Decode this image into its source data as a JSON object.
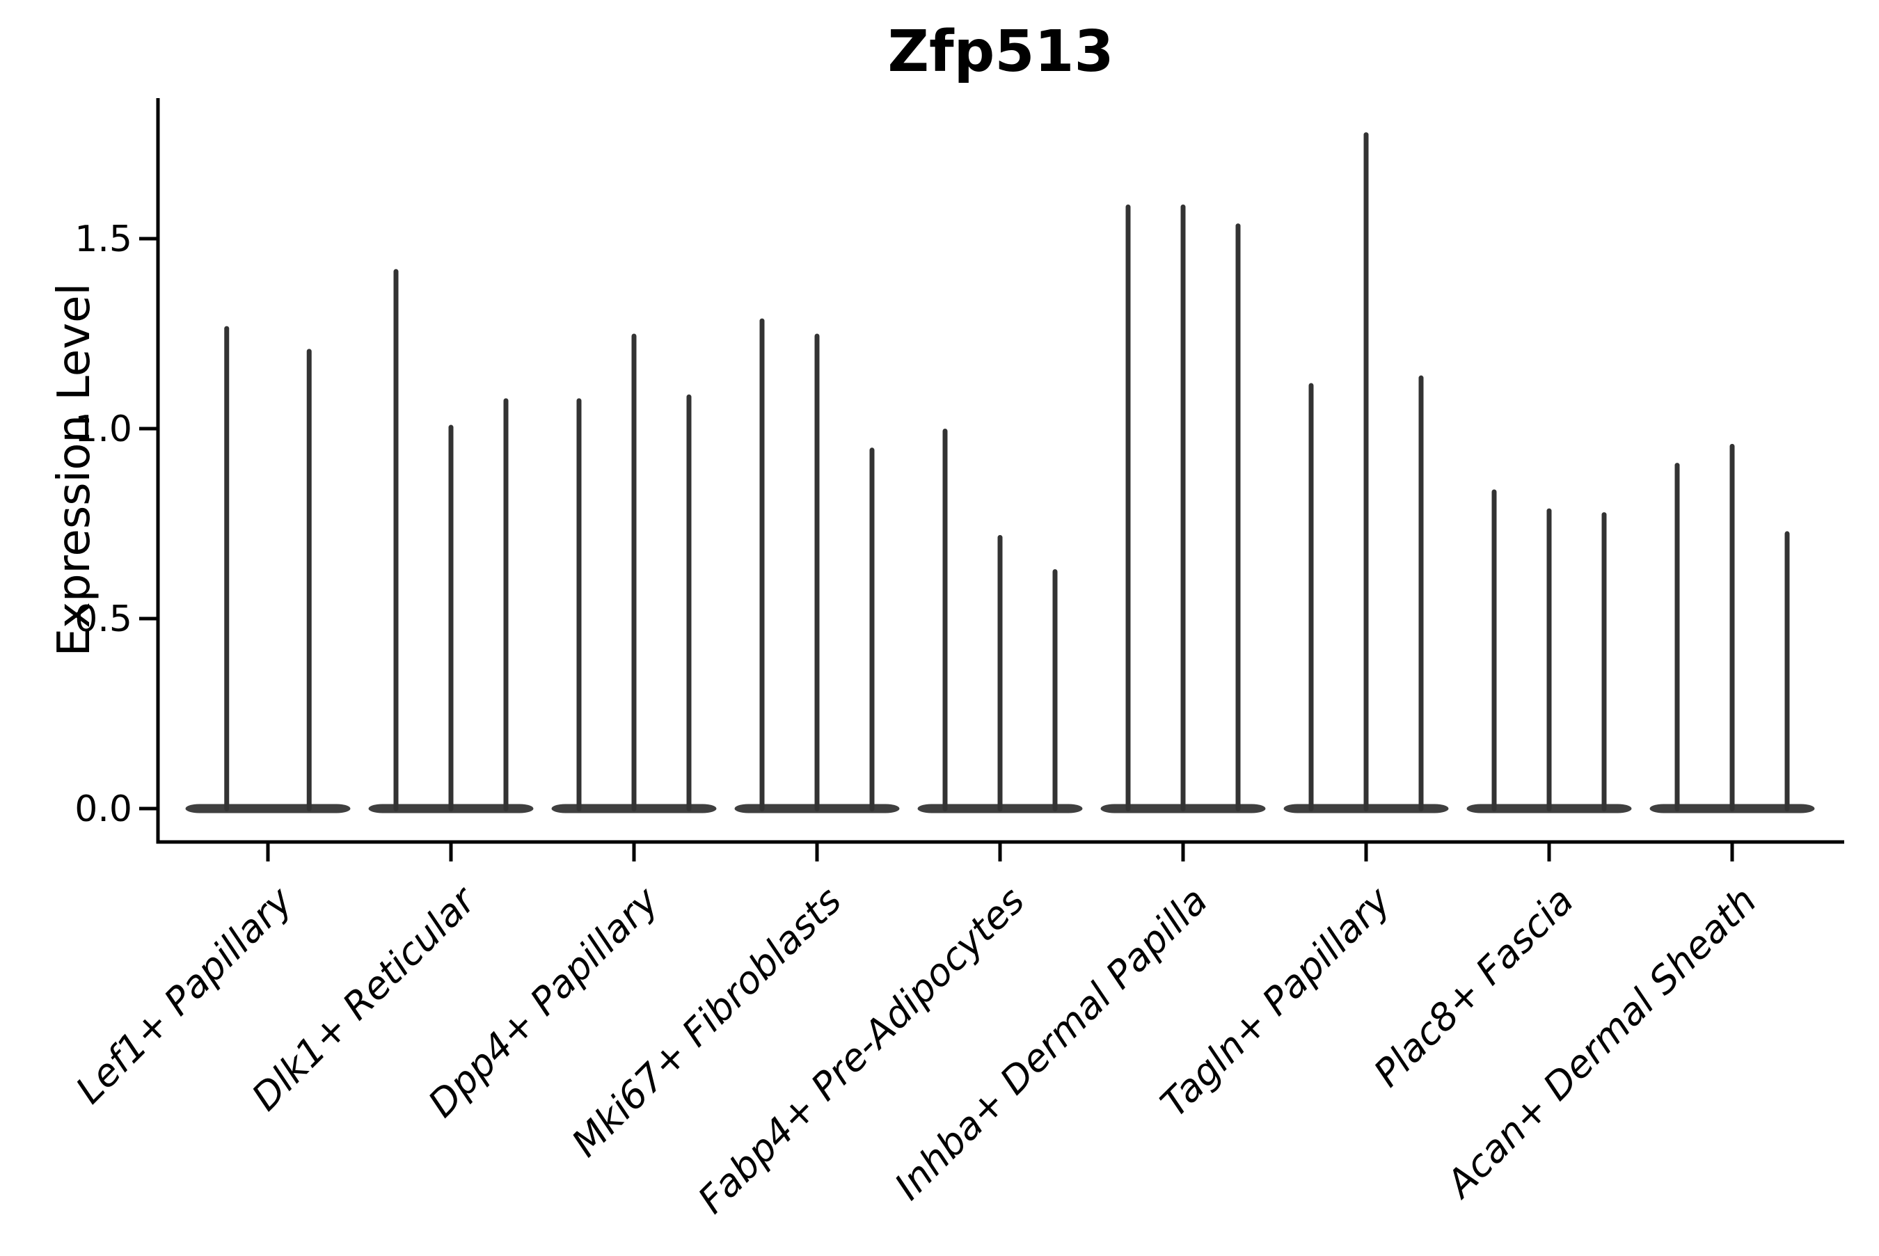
{
  "title": "Zfp513",
  "ylabel": "Expression Level",
  "chart_data": {
    "type": "violin",
    "title": "Zfp513",
    "xlabel": "",
    "ylabel": "Expression Level",
    "legend_position": "none",
    "grid": false,
    "baseline_value": 0.0,
    "yticks": [
      0.0,
      0.5,
      1.0,
      1.5
    ],
    "ylim": [
      -0.09,
      1.87
    ],
    "violin_color": "#3a3a3a",
    "shape_note": "each violin is a wide flat lens of density at 0 with a single thin spike rising to its max expression value",
    "categories": [
      "Lef1+ Papillary",
      "Dlk1+ Reticular",
      "Dpp4+ Papillary",
      "Mki67+ Fibroblasts",
      "Fabp4+ Pre-Adipocytes",
      "Inhba+ Dermal Papilla",
      "Tagln+ Papillary",
      "Plac8+ Fascia",
      "Acan+ Dermal Sheath"
    ],
    "groups": [
      {
        "category": "Lef1+ Papillary",
        "violin_max_values": [
          1.27,
          1.21
        ]
      },
      {
        "category": "Dlk1+ Reticular",
        "violin_max_values": [
          1.42,
          1.01,
          1.08
        ]
      },
      {
        "category": "Dpp4+ Papillary",
        "violin_max_values": [
          1.08,
          1.25,
          1.09
        ]
      },
      {
        "category": "Mki67+ Fibroblasts",
        "violin_max_values": [
          1.29,
          1.25,
          0.95
        ]
      },
      {
        "category": "Fabp4+ Pre-Adipocytes",
        "violin_max_values": [
          1.0,
          0.72,
          0.63
        ]
      },
      {
        "category": "Inhba+ Dermal Papilla",
        "violin_max_values": [
          1.59,
          1.59,
          1.54
        ]
      },
      {
        "category": "Tagln+ Papillary",
        "violin_max_values": [
          1.12,
          1.78,
          1.14
        ]
      },
      {
        "category": "Plac8+ Fascia",
        "violin_max_values": [
          0.84,
          0.79,
          0.78
        ]
      },
      {
        "category": "Acan+ Dermal Sheath",
        "violin_max_values": [
          0.91,
          0.96,
          0.73
        ]
      }
    ]
  }
}
